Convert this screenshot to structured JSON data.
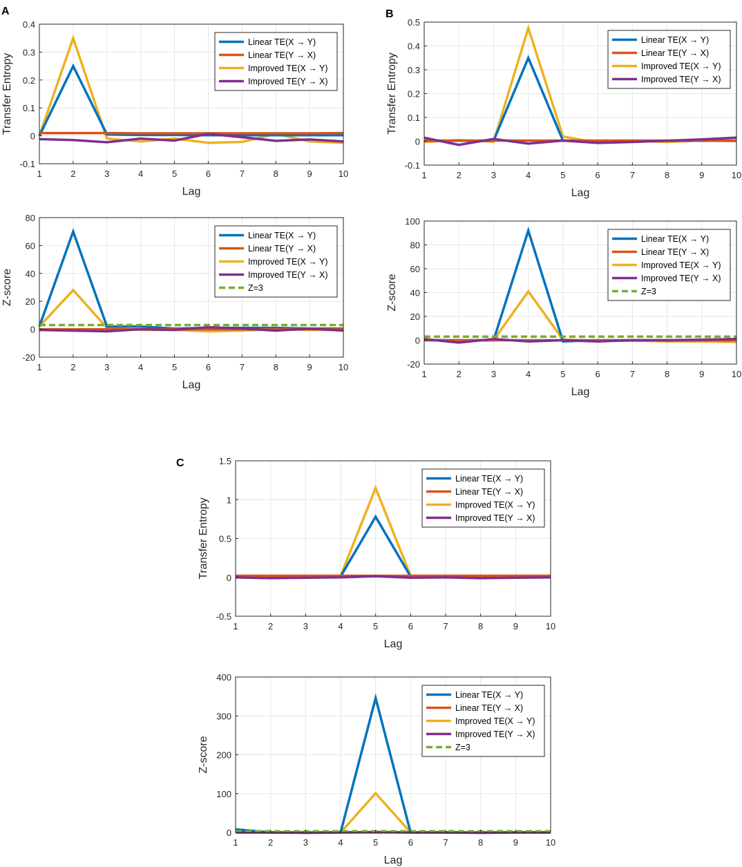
{
  "panel_labels": [
    "A",
    "B",
    "C"
  ],
  "legend_labels": {
    "linear_xy": "Linear TE(X → Y)",
    "linear_yx": "Linear TE(Y → X)",
    "improved_xy": "Improved TE(X → Y)",
    "improved_yx": "Improved TE(Y → X)",
    "z3": "Z=3"
  },
  "colors": {
    "linear_xy": "#0072BD",
    "linear_yx": "#D95319",
    "improved_xy": "#EDB120",
    "improved_yx": "#7E2F8E",
    "z3": "#77AC30"
  },
  "chart_data": [
    {
      "id": "A-te",
      "panel": "A",
      "type": "line",
      "xlabel": "Lag",
      "ylabel": "Transfer Entropy",
      "x": [
        1,
        2,
        3,
        4,
        5,
        6,
        7,
        8,
        9,
        10
      ],
      "xlim": [
        1,
        10
      ],
      "ylim": [
        -0.1,
        0.4
      ],
      "xticks": [
        "1",
        "2",
        "3",
        "4",
        "5",
        "6",
        "7",
        "8",
        "9",
        "10"
      ],
      "yticks": [
        -0.1,
        0,
        0.1,
        0.2,
        0.3,
        0.4
      ],
      "ytick_labels": [
        "-0.1",
        "0",
        "0.1",
        "0.2",
        "0.3",
        "0.4"
      ],
      "series": [
        {
          "key": "improved_xy",
          "values": [
            0,
            0.35,
            -0.01,
            -0.02,
            -0.01,
            -0.025,
            -0.022,
            0.007,
            -0.02,
            -0.025
          ]
        },
        {
          "key": "linear_xy",
          "values": [
            0,
            0.25,
            0.005,
            0.003,
            0.003,
            0.002,
            0.002,
            0.002,
            0.002,
            0.002
          ]
        },
        {
          "key": "linear_yx",
          "values": [
            0.01,
            0.01,
            0.01,
            0.009,
            0.009,
            0.009,
            0.009,
            0.009,
            0.009,
            0.01
          ]
        },
        {
          "key": "improved_yx",
          "values": [
            -0.012,
            -0.015,
            -0.023,
            -0.01,
            -0.017,
            0.007,
            -0.005,
            -0.018,
            -0.013,
            -0.02
          ]
        }
      ]
    },
    {
      "id": "A-z",
      "panel": "A",
      "type": "line",
      "xlabel": "Lag",
      "ylabel": "Z-score",
      "x": [
        1,
        2,
        3,
        4,
        5,
        6,
        7,
        8,
        9,
        10
      ],
      "xlim": [
        1,
        10
      ],
      "ylim": [
        -20,
        80
      ],
      "xticks": [
        "1",
        "2",
        "3",
        "4",
        "5",
        "6",
        "7",
        "8",
        "9",
        "10"
      ],
      "yticks": [
        -20,
        0,
        20,
        40,
        60,
        80
      ],
      "ytick_labels": [
        "-20",
        "0",
        "20",
        "40",
        "60",
        "80"
      ],
      "series": [
        {
          "key": "improved_xy",
          "values": [
            2,
            28,
            1,
            -0.5,
            -0.5,
            -1.5,
            -1,
            0,
            -0.5,
            -0.5
          ]
        },
        {
          "key": "linear_xy",
          "values": [
            2,
            70,
            2,
            2,
            0.5,
            1,
            1,
            1,
            0.5,
            0.5
          ]
        },
        {
          "key": "linear_yx",
          "values": [
            0,
            0,
            0,
            0,
            0,
            0,
            0,
            0,
            0,
            0
          ]
        },
        {
          "key": "improved_yx",
          "values": [
            -0.5,
            -1,
            -1.5,
            0,
            -0.5,
            1.5,
            0.5,
            -1,
            0.5,
            -1
          ]
        },
        {
          "key": "z3",
          "dashed": true,
          "values": [
            3,
            3,
            3,
            3,
            3,
            3,
            3,
            3,
            3,
            3
          ]
        }
      ]
    },
    {
      "id": "B-te",
      "panel": "B",
      "type": "line",
      "xlabel": "Lag",
      "ylabel": "Transfer Entropy",
      "x": [
        1,
        2,
        3,
        4,
        5,
        6,
        7,
        8,
        9,
        10
      ],
      "xlim": [
        1,
        10
      ],
      "ylim": [
        -0.1,
        0.5
      ],
      "xticks": [
        "1",
        "2",
        "3",
        "4",
        "5",
        "6",
        "7",
        "8",
        "9",
        "10"
      ],
      "yticks": [
        -0.1,
        0,
        0.1,
        0.2,
        0.3,
        0.4,
        0.5
      ],
      "ytick_labels": [
        "-0.1",
        "0",
        "0.1",
        "0.2",
        "0.3",
        "0.4",
        "0.5"
      ],
      "series": [
        {
          "key": "improved_xy",
          "values": [
            -0.003,
            0.005,
            -0.002,
            0.475,
            0.02,
            -0.006,
            0.003,
            -0.003,
            0.003,
            0.001
          ]
        },
        {
          "key": "linear_xy",
          "values": [
            0.002,
            0.002,
            0.002,
            0.35,
            0.002,
            0.002,
            0.002,
            0.002,
            0.002,
            0.002
          ]
        },
        {
          "key": "linear_yx",
          "values": [
            0.003,
            0.003,
            0.003,
            0.003,
            0.003,
            0.003,
            0.003,
            0.003,
            0.003,
            0.003
          ]
        },
        {
          "key": "improved_yx",
          "values": [
            0.015,
            -0.015,
            0.01,
            -0.01,
            0.003,
            -0.007,
            -0.003,
            0.002,
            0.008,
            0.015
          ]
        }
      ]
    },
    {
      "id": "B-z",
      "panel": "B",
      "type": "line",
      "xlabel": "Lag",
      "ylabel": "Z-score",
      "x": [
        1,
        2,
        3,
        4,
        5,
        6,
        7,
        8,
        9,
        10
      ],
      "xlim": [
        1,
        10
      ],
      "ylim": [
        -20,
        100
      ],
      "xticks": [
        "1",
        "2",
        "3",
        "4",
        "5",
        "6",
        "7",
        "8",
        "9",
        "10"
      ],
      "yticks": [
        -20,
        0,
        20,
        40,
        60,
        80,
        100
      ],
      "ytick_labels": [
        "-20",
        "0",
        "20",
        "40",
        "60",
        "80",
        "100"
      ],
      "series": [
        {
          "key": "improved_xy",
          "values": [
            0,
            0,
            0,
            41,
            0.5,
            -0.5,
            -0.3,
            -1,
            -1,
            -1.5
          ]
        },
        {
          "key": "linear_xy",
          "values": [
            0,
            0,
            0,
            92,
            -1,
            0,
            0,
            0,
            0,
            0
          ]
        },
        {
          "key": "linear_yx",
          "values": [
            0,
            0,
            0,
            0,
            0,
            0,
            0,
            0,
            0,
            0
          ]
        },
        {
          "key": "improved_yx",
          "values": [
            1,
            -2,
            1,
            -1,
            0,
            -1,
            0,
            0,
            0.5,
            1
          ]
        },
        {
          "key": "z3",
          "dashed": true,
          "values": [
            3,
            3,
            3,
            3,
            3,
            3,
            3,
            3,
            3,
            3
          ]
        }
      ]
    },
    {
      "id": "C-te",
      "panel": "C",
      "type": "line",
      "xlabel": "Lag",
      "ylabel": "Transfer Entropy",
      "x": [
        1,
        2,
        3,
        4,
        5,
        6,
        7,
        8,
        9,
        10
      ],
      "xlim": [
        1,
        10
      ],
      "ylim": [
        -0.5,
        1.5
      ],
      "xticks": [
        "1",
        "2",
        "3",
        "4",
        "5",
        "6",
        "7",
        "8",
        "9",
        "10"
      ],
      "yticks": [
        -0.5,
        0,
        0.5,
        1,
        1.5
      ],
      "ytick_labels": [
        "-0.5",
        "0",
        "0.5",
        "1",
        "1.5"
      ],
      "series": [
        {
          "key": "improved_xy",
          "values": [
            0.02,
            0.02,
            0.02,
            0.02,
            1.15,
            0.02,
            0.02,
            0.02,
            0.02,
            0.02
          ]
        },
        {
          "key": "linear_xy",
          "values": [
            0.01,
            0.01,
            0.01,
            0.01,
            0.78,
            0.01,
            0.01,
            0.01,
            0.01,
            0.01
          ]
        },
        {
          "key": "linear_yx",
          "values": [
            0.02,
            0.02,
            0.02,
            0.02,
            0.02,
            0.02,
            0.02,
            0.02,
            0.02,
            0.02
          ]
        },
        {
          "key": "improved_yx",
          "values": [
            0,
            -0.01,
            -0.005,
            0,
            0.015,
            -0.005,
            0,
            -0.01,
            -0.005,
            0
          ]
        }
      ]
    },
    {
      "id": "C-z",
      "panel": "C",
      "type": "line",
      "xlabel": "Lag",
      "ylabel": "Z-score",
      "x": [
        1,
        2,
        3,
        4,
        5,
        6,
        7,
        8,
        9,
        10
      ],
      "xlim": [
        1,
        10
      ],
      "ylim": [
        0,
        400
      ],
      "xticks": [
        "1",
        "2",
        "3",
        "4",
        "5",
        "6",
        "7",
        "8",
        "9",
        "10"
      ],
      "yticks": [
        0,
        100,
        200,
        300,
        400
      ],
      "ytick_labels": [
        "0",
        "100",
        "200",
        "300",
        "400"
      ],
      "series": [
        {
          "key": "improved_xy",
          "values": [
            0,
            0,
            0,
            0,
            101,
            0,
            0,
            0,
            0,
            0
          ]
        },
        {
          "key": "linear_xy",
          "values": [
            8,
            0,
            0,
            0,
            346,
            0,
            0,
            0,
            0,
            0
          ]
        },
        {
          "key": "linear_yx",
          "values": [
            0,
            0,
            0,
            0,
            0,
            0,
            0,
            0,
            0,
            0
          ]
        },
        {
          "key": "improved_yx",
          "values": [
            0,
            0,
            -1,
            0,
            1,
            0,
            0,
            -1,
            0,
            0
          ]
        },
        {
          "key": "z3",
          "dashed": true,
          "values": [
            3,
            3,
            3,
            3,
            3,
            3,
            3,
            3,
            3,
            3
          ]
        }
      ]
    }
  ]
}
